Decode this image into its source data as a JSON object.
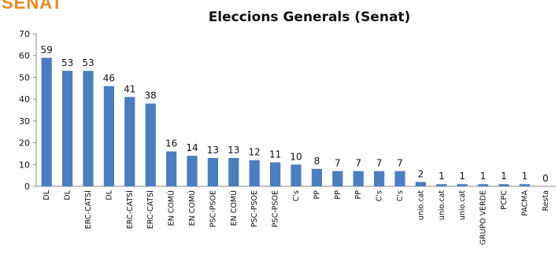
{
  "header_label": "SENAT",
  "chart_data": {
    "type": "bar",
    "title": "Eleccions  Generals (Senat)",
    "xlabel": "",
    "ylabel": "",
    "ylim": [
      0,
      70
    ],
    "yticks": [
      0,
      10,
      20,
      30,
      40,
      50,
      60,
      70
    ],
    "grid": false,
    "legend": "none",
    "bar_color": "#4a7ec0",
    "categories": [
      "DL",
      "DL",
      "ERC-CATSÍ",
      "DL",
      "ERC-CATSÍ",
      "ERC-CATSÍ",
      "EN COMÚ",
      "EN COMÚ",
      "PSC-PSOE",
      "EN COMÚ",
      "PSC-PSOE",
      "PSC-PSOE",
      "C's",
      "PP",
      "PP",
      "PP",
      "C's",
      "C's",
      "unio.cat",
      "unio.cat",
      "unio.cat",
      "GRUPO VERDE",
      "PCPC",
      "PACMA",
      "Resta"
    ],
    "values": [
      59,
      53,
      53,
      46,
      41,
      38,
      16,
      14,
      13,
      13,
      12,
      11,
      10,
      8,
      7,
      7,
      7,
      7,
      2,
      1,
      1,
      1,
      1,
      1,
      0
    ]
  }
}
